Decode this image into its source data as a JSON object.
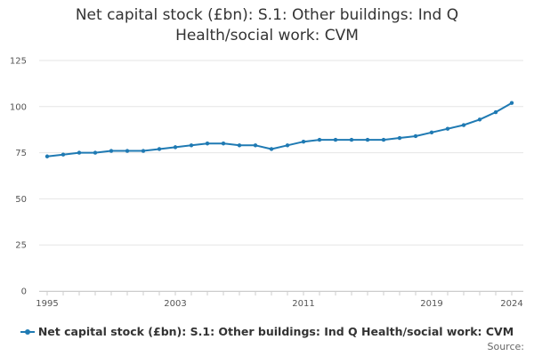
{
  "chart_data": {
    "type": "line",
    "title_lines": [
      "Net capital stock (£bn): S.1: Other buildings: Ind Q",
      "Health/social work: CVM"
    ],
    "x": [
      1995,
      1996,
      1997,
      1998,
      1999,
      2000,
      2001,
      2002,
      2003,
      2004,
      2005,
      2006,
      2007,
      2008,
      2009,
      2010,
      2011,
      2012,
      2013,
      2014,
      2015,
      2016,
      2017,
      2018,
      2019,
      2020,
      2021,
      2022,
      2023,
      2024
    ],
    "series": [
      {
        "name": "Net capital stock (£bn): S.1: Other buildings: Ind Q Health/social work: CVM",
        "values": [
          73,
          74,
          75,
          75,
          76,
          76,
          76,
          77,
          78,
          79,
          80,
          80,
          79,
          79,
          77,
          79,
          81,
          82,
          82,
          82,
          82,
          82,
          83,
          84,
          86,
          88,
          90,
          93,
          97,
          102
        ]
      }
    ],
    "xticks": [
      1995,
      2003,
      2011,
      2019,
      2024
    ],
    "yticks": [
      0,
      25,
      50,
      75,
      100,
      125
    ],
    "xlim": [
      1995,
      2024
    ],
    "ylim": [
      0,
      125
    ],
    "grid": true,
    "legend_position": "bottom",
    "xlabel": "",
    "ylabel": ""
  },
  "source_label": "Source:",
  "colors": {
    "series": "#1f7ab3",
    "grid": "#e6e6e6",
    "axis": "#cccccc"
  }
}
